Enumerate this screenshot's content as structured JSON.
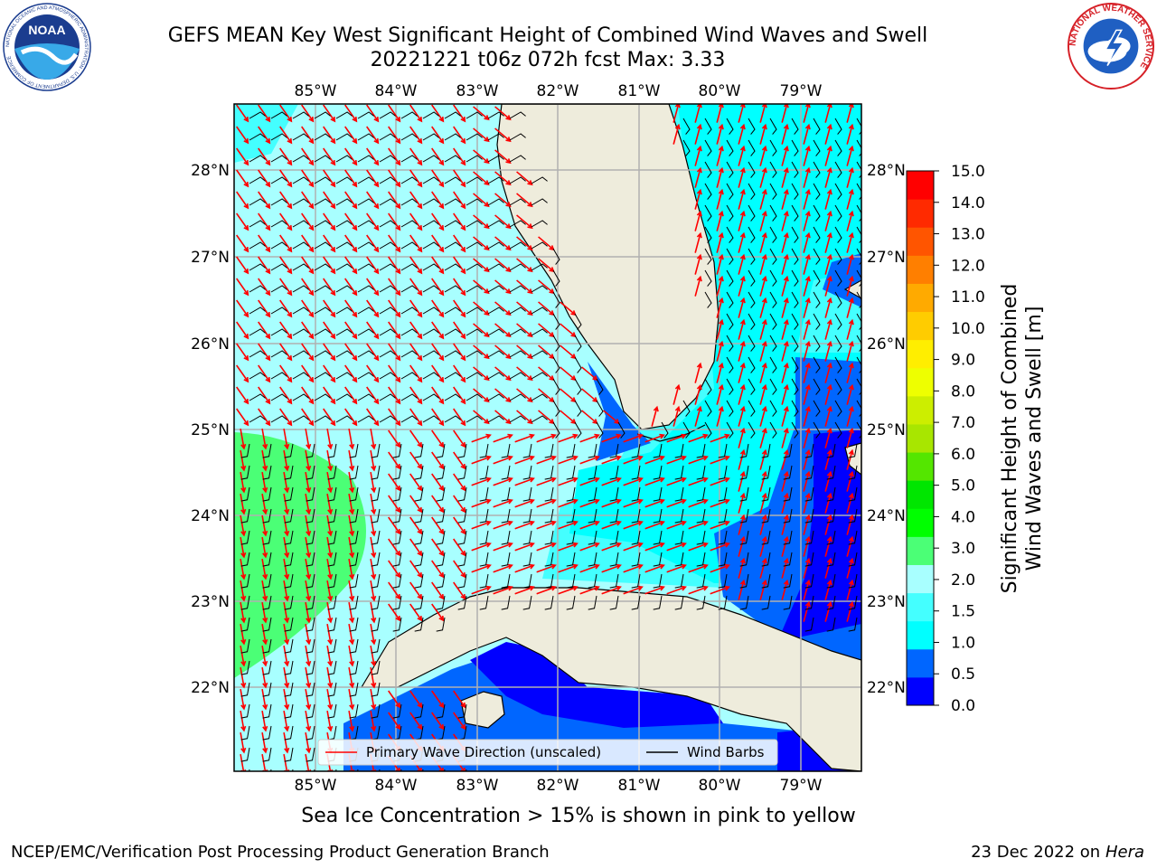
{
  "header": {
    "title_line1": "GEFS MEAN Key West Significant Height of Combined Wind Waves and Swell",
    "title_line2": "20221221 t06z 072h fcst   Max: 3.33",
    "noaa_logo_text": "NOAA",
    "noaa_ring_text": "NATIONAL OCEANIC AND ATMOSPHERIC ADMINISTRATION · U.S. DEPARTMENT OF COMMERCE",
    "nws_ring_text": "NATIONAL WEATHER SERVICE"
  },
  "map": {
    "lon_labels": [
      "85°W",
      "84°W",
      "83°W",
      "82°W",
      "81°W",
      "80°W",
      "79°W"
    ],
    "lat_labels": [
      "28°N",
      "27°N",
      "26°N",
      "25°N",
      "24°N",
      "23°N",
      "22°N"
    ],
    "land_color": "#eeecdc",
    "grid_color": "#b0b0b0",
    "wave_arrow_color": "#ff0000",
    "wind_barb_color": "#000000"
  },
  "legend": {
    "wave_label": "Primary Wave Direction (unscaled)",
    "wind_label": "Wind Barbs"
  },
  "colorbar": {
    "label_line1": "Significant Height of Combined",
    "label_line2": "Wind Waves and Swell [m]",
    "ticks": [
      "15.0",
      "14.0",
      "13.0",
      "12.0",
      "11.0",
      "10.0",
      "9.0",
      "8.0",
      "7.0",
      "6.0",
      "5.0",
      "4.0",
      "3.0",
      "2.0",
      "1.5",
      "1.0",
      "0.5",
      "0.0"
    ],
    "bands": [
      "#0000ff",
      "#0066ff",
      "#00ffff",
      "#44ffff",
      "#a8ffff",
      "#4bff76",
      "#00ff00",
      "#00e600",
      "#54e600",
      "#a8e600",
      "#ccee00",
      "#eeff00",
      "#ffee00",
      "#ffcc00",
      "#ffaa00",
      "#ff7f00",
      "#ff5500",
      "#ff2a00",
      "#ff0000"
    ]
  },
  "sea_ice_note": "Sea Ice Concentration > 15% is shown in pink to yellow",
  "footer": {
    "left": "NCEP/EMC/Verification Post Processing Product Generation Branch",
    "date": "23 Dec 2022 on",
    "host": "Hera"
  }
}
